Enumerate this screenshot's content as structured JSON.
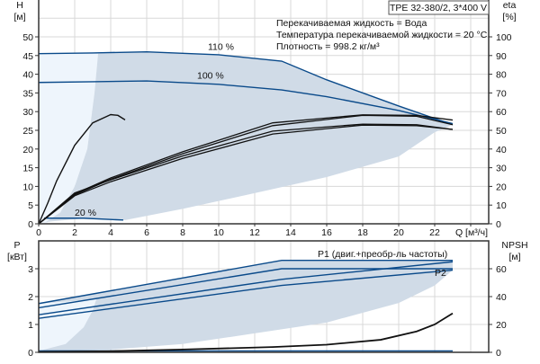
{
  "chart_data": [
    {
      "type": "line",
      "title": "TPE 32-380/2, 3*400 V",
      "annotations": [
        "Перекачиваемая жидкость = Вода",
        "Температура перекачиваемой жидкости = 20 °C",
        "Плотность = 998.2 кг/м³"
      ],
      "xlabel": "Q [м³/ч]",
      "ylabel_left": "H",
      "ylabel_left_unit": "[м]",
      "ylabel_right": "eta",
      "ylabel_right_unit": "[%]",
      "xlim": [
        0,
        25
      ],
      "ylim_left": [
        0,
        60
      ],
      "ylim_right": [
        0,
        120
      ],
      "x_ticks": [
        "0",
        "2",
        "4",
        "6",
        "8",
        "10",
        "12",
        "14",
        "16",
        "18",
        "20",
        "22"
      ],
      "y_ticks_left": [
        "0",
        "5",
        "10",
        "15",
        "20",
        "25",
        "30",
        "35",
        "40",
        "45",
        "50"
      ],
      "y_ticks_right": [
        "0",
        "10",
        "20",
        "30",
        "40",
        "50",
        "60",
        "70",
        "80",
        "90",
        "100"
      ],
      "grid": true,
      "series": [
        {
          "name": "110 %",
          "axis": "H",
          "color": "#0a4a8a",
          "points": [
            [
              0,
              45.5
            ],
            [
              3,
              45.7
            ],
            [
              6,
              46
            ],
            [
              10,
              45.2
            ],
            [
              13.5,
              43.5
            ],
            [
              16,
              38.5
            ],
            [
              20,
              31.5
            ],
            [
              23,
              26.5
            ]
          ]
        },
        {
          "name": "100 %",
          "axis": "H",
          "color": "#0a4a8a",
          "points": [
            [
              0,
              37.8
            ],
            [
              3,
              38
            ],
            [
              6,
              38.2
            ],
            [
              10,
              37.3
            ],
            [
              13.5,
              35.8
            ],
            [
              16,
              34
            ],
            [
              20,
              30.3
            ],
            [
              23,
              26.8
            ]
          ]
        },
        {
          "name": "20 %",
          "axis": "H",
          "color": "#0a4a8a",
          "points": [
            [
              0.3,
              1.5
            ],
            [
              2.5,
              1.5
            ],
            [
              4.7,
              1
            ]
          ]
        },
        {
          "axis": "H",
          "color": "#111111",
          "points": [
            [
              0,
              0
            ],
            [
              0.5,
              5.5
            ],
            [
              1,
              11.5
            ],
            [
              2,
              21
            ],
            [
              3,
              27
            ],
            [
              4,
              29.2
            ],
            [
              4.4,
              29
            ],
            [
              4.8,
              27.8
            ]
          ]
        },
        {
          "axis": "eta",
          "color": "#111111",
          "points": [
            [
              0,
              0
            ],
            [
              2,
              16
            ],
            [
              4,
              24.5
            ],
            [
              8,
              38.5
            ],
            [
              13,
              54
            ],
            [
              18,
              58.3
            ],
            [
              21,
              58
            ],
            [
              23,
              55.5
            ]
          ]
        },
        {
          "axis": "eta",
          "color": "#111111",
          "points": [
            [
              0,
              0
            ],
            [
              2,
              15.5
            ],
            [
              4,
              23.8
            ],
            [
              8,
              37.5
            ],
            [
              13,
              52.5
            ],
            [
              18,
              58
            ],
            [
              21,
              57.5
            ],
            [
              23,
              53
            ]
          ]
        },
        {
          "axis": "eta",
          "color": "#111111",
          "points": [
            [
              0,
              0
            ],
            [
              2,
              16.5
            ],
            [
              4,
              23.5
            ],
            [
              8,
              36.3
            ],
            [
              13,
              49.6
            ],
            [
              18,
              53.3
            ],
            [
              21,
              53
            ],
            [
              23,
              50.5
            ]
          ]
        },
        {
          "axis": "eta",
          "color": "#111111",
          "points": [
            [
              0,
              0
            ],
            [
              2,
              15
            ],
            [
              4,
              22.5
            ],
            [
              8,
              35
            ],
            [
              13,
              48
            ],
            [
              18,
              52.8
            ],
            [
              21,
              52.5
            ],
            [
              23,
              50.5
            ]
          ]
        }
      ],
      "operating_area": {
        "color": "#d0dbe7",
        "lower_edge": [
          [
            4.8,
            1
          ],
          [
            8,
            4
          ],
          [
            12,
            8.2
          ],
          [
            16,
            12.5
          ],
          [
            20,
            18
          ],
          [
            22,
            24.5
          ],
          [
            23,
            26.5
          ]
        ],
        "left_edge": [
          [
            1.2,
            3
          ],
          [
            2,
            10
          ],
          [
            2.7,
            20
          ],
          [
            3.1,
            35
          ],
          [
            3.3,
            45.5
          ]
        ]
      },
      "extended_area_color": "#eef5fc"
    },
    {
      "type": "line",
      "ylabel_left": "P",
      "ylabel_left_unit": "[кВт]",
      "ylabel_right": "NPSH",
      "ylabel_right_unit": "[м]",
      "xlim": [
        0,
        25
      ],
      "ylim_left": [
        0,
        4
      ],
      "ylim_right": [
        0,
        80
      ],
      "y_ticks_left": [
        "0",
        "1",
        "2",
        "3"
      ],
      "y_ticks_right": [
        "0",
        "20",
        "40",
        "60"
      ],
      "grid": true,
      "series": [
        {
          "name": "P1 (двиг.+преобр-ль частоты)",
          "axis": "P",
          "color": "#0a4a8a",
          "points": [
            [
              0,
              1.75
            ],
            [
              13.5,
              3.3
            ],
            [
              23,
              3.3
            ]
          ]
        },
        {
          "axis": "P",
          "color": "#0a4a8a",
          "points": [
            [
              0,
              1.6
            ],
            [
              13.5,
              3.0
            ],
            [
              23,
              3.0
            ]
          ]
        },
        {
          "axis": "P",
          "color": "#0a4a8a",
          "points": [
            [
              0,
              1.35
            ],
            [
              13.5,
              2.62
            ],
            [
              23,
              3.25
            ]
          ]
        },
        {
          "name": "P2",
          "axis": "P",
          "color": "#0a4a8a",
          "points": [
            [
              0,
              1.22
            ],
            [
              13.5,
              2.4
            ],
            [
              23,
              2.95
            ]
          ]
        },
        {
          "axis": "P",
          "color": "#0a4a8a",
          "points": [
            [
              0,
              0.05
            ],
            [
              23,
              0.05
            ]
          ]
        },
        {
          "axis": "NPSH",
          "color": "#111111",
          "points": [
            [
              0,
              0.3
            ],
            [
              4,
              0.8
            ],
            [
              8,
              2
            ],
            [
              13,
              3.8
            ],
            [
              16,
              5.5
            ],
            [
              19,
              9
            ],
            [
              21,
              15
            ],
            [
              22,
              20
            ],
            [
              23,
              28
            ]
          ]
        }
      ],
      "operating_area": {
        "color": "#d0dbe7",
        "lower_edge": [
          [
            0,
            0.02
          ],
          [
            4,
            0.1
          ],
          [
            8,
            0.3
          ],
          [
            12,
            0.68
          ],
          [
            16,
            1.07
          ],
          [
            20,
            1.77
          ],
          [
            22,
            2.4
          ],
          [
            23,
            2.95
          ]
        ]
      },
      "extended_area_left_edge": [
        [
          0,
          0.05
        ],
        [
          1.5,
          0.3
        ],
        [
          2.5,
          0.9
        ],
        [
          3,
          1.5
        ],
        [
          3.2,
          1.9
        ]
      ]
    }
  ]
}
